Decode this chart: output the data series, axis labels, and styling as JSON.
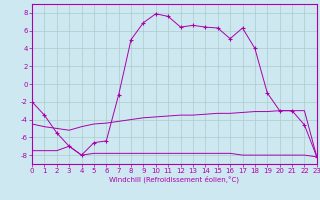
{
  "xlabel": "Windchill (Refroidissement éolien,°C)",
  "background_color": "#cde8f0",
  "grid_color": "#aacccc",
  "line_color": "#aa00aa",
  "temp_line": [
    -2.0,
    -3.5,
    -5.5,
    -7.0,
    -8.0,
    -6.6,
    -6.4,
    -1.2,
    5.0,
    6.9,
    7.9,
    7.6,
    6.4,
    6.6,
    6.4,
    6.3,
    5.1,
    6.3,
    4.0,
    -1.0,
    -3.0,
    -3.0,
    -4.6,
    -8.2
  ],
  "mid_line": [
    -4.5,
    -4.8,
    -5.0,
    -5.2,
    -4.8,
    -4.5,
    -4.4,
    -4.2,
    -4.0,
    -3.8,
    -3.7,
    -3.6,
    -3.5,
    -3.5,
    -3.4,
    -3.3,
    -3.3,
    -3.2,
    -3.1,
    -3.1,
    -3.0,
    -3.0,
    -3.0,
    -8.2
  ],
  "low_line": [
    -7.5,
    -7.5,
    -7.5,
    -7.0,
    -8.0,
    -7.8,
    -7.8,
    -7.8,
    -7.8,
    -7.8,
    -7.8,
    -7.8,
    -7.8,
    -7.8,
    -7.8,
    -7.8,
    -7.8,
    -8.0,
    -8.0,
    -8.0,
    -8.0,
    -8.0,
    -8.0,
    -8.2
  ],
  "ylim": [
    -9,
    9
  ],
  "xlim": [
    0,
    23
  ],
  "yticks": [
    -8,
    -6,
    -4,
    -2,
    0,
    2,
    4,
    6,
    8
  ],
  "xticks": [
    0,
    1,
    2,
    3,
    4,
    5,
    6,
    7,
    8,
    9,
    10,
    11,
    12,
    13,
    14,
    15,
    16,
    17,
    18,
    19,
    20,
    21,
    22,
    23
  ]
}
